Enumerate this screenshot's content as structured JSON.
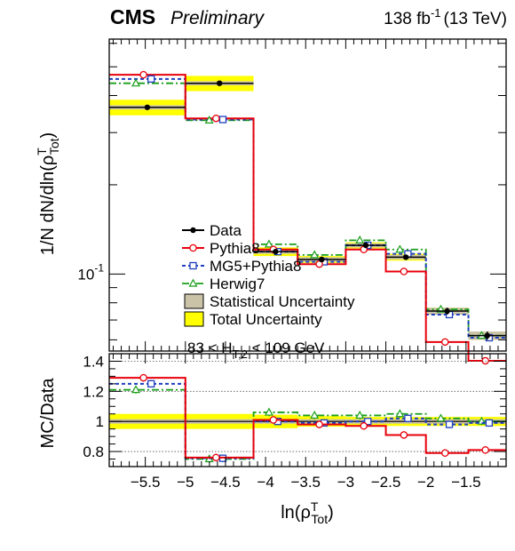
{
  "header": {
    "experiment": "CMS",
    "status": "Preliminary",
    "lumi_prefix": "138 fb",
    "lumi_exp": "-1",
    "lumi_suffix": "(13 TeV)"
  },
  "colors": {
    "data": "#000000",
    "pythia8": "#e8000b",
    "mg5": "#1f3fbf",
    "herwig7": "#1a9e1a",
    "stat_band": "#cbc3a8",
    "total_band": "#ffff00"
  },
  "chart_data": [
    {
      "type": "line",
      "panel": "main",
      "ylabel": "1/N dN/dln(ρ^T_Tot)",
      "ylabel_main": "1/N dN/dln(ρ",
      "ylabel_sup": "T",
      "ylabel_sub": "Tot",
      "ylabel_close": ")",
      "yscale": "log",
      "xlim": [
        -5.95,
        -1.0
      ],
      "ylim": [
        0.055,
        0.62
      ],
      "ytick_labels": [
        "10",
        "-1"
      ],
      "bin_edges": [
        -5.95,
        -5.0,
        -4.15,
        -3.6,
        -3.0,
        -2.5,
        -2.0,
        -1.47,
        -1.0
      ],
      "annotation": {
        "prefix": "83 < H",
        "sub": "T,2",
        "suffix": " < 109 GeV"
      },
      "legend": [
        "Data",
        "Pythia8",
        "MG5+Pythia8",
        "Herwig7",
        "Statistical Uncertainty",
        "Total Uncertainty"
      ],
      "series": [
        {
          "name": "Data",
          "values": [
            0.365,
            0.44,
            0.119,
            0.112,
            0.125,
            0.114,
            0.075,
            0.062
          ]
        },
        {
          "name": "Pythia8",
          "values": [
            0.47,
            0.335,
            0.121,
            0.108,
            0.121,
            0.102,
            0.059,
            0.051
          ]
        },
        {
          "name": "MG5+Pythia8",
          "values": [
            0.455,
            0.332,
            0.119,
            0.11,
            0.125,
            0.117,
            0.073,
            0.061
          ]
        },
        {
          "name": "Herwig7",
          "values": [
            0.44,
            0.33,
            0.126,
            0.116,
            0.13,
            0.121,
            0.076,
            0.062
          ]
        }
      ],
      "stat_uncertainty": [
        0.006,
        0.007,
        0.002,
        0.002,
        0.002,
        0.002,
        0.002,
        0.002
      ],
      "total_uncertainty": [
        0.022,
        0.026,
        0.004,
        0.003,
        0.003,
        0.003,
        0.002,
        0.002
      ]
    },
    {
      "type": "line",
      "panel": "ratio",
      "ylabel": "MC/Data",
      "xlabel": "ln(ρ^T_Tot)",
      "xlabel_main": "ln(ρ",
      "xlabel_sup": "T",
      "xlabel_sub": "Tot",
      "xlabel_close": ")",
      "xlim": [
        -5.95,
        -1.0
      ],
      "ylim": [
        0.7,
        1.45
      ],
      "xticks": [
        -5.5,
        -5,
        -4.5,
        -4,
        -3.5,
        -3,
        -2.5,
        -2,
        -1.5
      ],
      "xtick_labels": [
        "−5.5",
        "−5",
        "−4.5",
        "−4",
        "−3.5",
        "−3",
        "−2.5",
        "−2",
        "−1.5"
      ],
      "yticks": [
        0.8,
        1,
        1.2,
        1.4
      ],
      "ytick_labels": [
        "0.8",
        "1",
        "1.2",
        "1.4"
      ],
      "reference_lines": [
        0.8,
        1.2,
        1.4
      ],
      "series": [
        {
          "name": "Pythia8",
          "values": [
            1.29,
            0.76,
            1.01,
            0.98,
            0.97,
            0.91,
            0.79,
            0.81
          ]
        },
        {
          "name": "MG5+Pythia8",
          "values": [
            1.25,
            0.755,
            1.0,
            0.99,
            1.0,
            1.02,
            0.98,
            0.99
          ]
        },
        {
          "name": "Herwig7",
          "values": [
            1.21,
            0.75,
            1.06,
            1.04,
            1.04,
            1.05,
            1.02,
            1.0
          ]
        }
      ],
      "stat_uncertainty": [
        0.015,
        0.015,
        0.015,
        0.015,
        0.015,
        0.015,
        0.015,
        0.015
      ],
      "total_uncertainty": [
        0.05,
        0.05,
        0.045,
        0.035,
        0.03,
        0.03,
        0.03,
        0.03
      ]
    }
  ]
}
